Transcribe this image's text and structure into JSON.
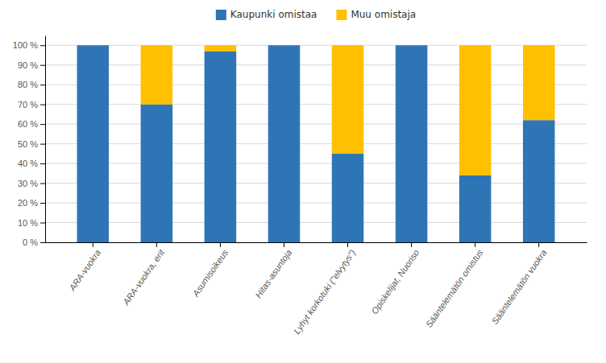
{
  "chart_data": {
    "type": "bar",
    "stacked": true,
    "categories": [
      "ARA-vuokra",
      "ARA-vuokra, erit",
      "Asumisoikeus",
      "Hitas-asuntoja",
      "Lyhyt korkotuki (\"elvytys\")",
      "Opiskelijat, Nuoriso",
      "Sääntelemätön omistus",
      "Sääntelemätön vuokra"
    ],
    "series": [
      {
        "name": "Kaupunki omistaa",
        "color": "#2E75B6",
        "values": [
          100,
          70,
          97,
          100,
          45,
          100,
          34,
          62
        ]
      },
      {
        "name": "Muu omistaja",
        "color": "#FFC000",
        "values": [
          0,
          30,
          3,
          0,
          55,
          0,
          66,
          38
        ]
      }
    ],
    "ylim": [
      0,
      105
    ],
    "yticks": [
      {
        "value": 0,
        "label": "0 %"
      },
      {
        "value": 10,
        "label": "10 %"
      },
      {
        "value": 20,
        "label": "20 %"
      },
      {
        "value": 30,
        "label": "30 %"
      },
      {
        "value": 40,
        "label": "40 %"
      },
      {
        "value": 50,
        "label": "50 %"
      },
      {
        "value": 60,
        "label": "60 %"
      },
      {
        "value": 70,
        "label": "70 %"
      },
      {
        "value": 80,
        "label": "80 %"
      },
      {
        "value": 90,
        "label": "90 %"
      },
      {
        "value": 100,
        "label": "100 %"
      }
    ],
    "grid": true,
    "legend": "top"
  }
}
